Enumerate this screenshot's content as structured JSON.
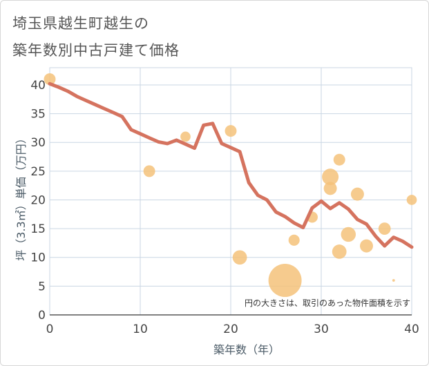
{
  "title_line1": "埼玉県越生町越生の",
  "title_line2": "築年数別中古戸建て価格",
  "chart_data": {
    "type": "scatter",
    "xlabel": "築年数（年）",
    "ylabel": "坪（3.3㎡）単価（万円）",
    "xlim": [
      0,
      40
    ],
    "ylim": [
      0,
      43
    ],
    "x_ticks": [
      0,
      10,
      20,
      30,
      40
    ],
    "y_ticks": [
      0,
      5,
      10,
      15,
      20,
      25,
      30,
      35,
      40
    ],
    "grid": true,
    "note": "円の大きさは、取引のあった物件面積を示す",
    "colors": {
      "trend": "#d5735f",
      "bubble": "#f5c27a",
      "grid": "#c9d6e3",
      "axis": "#555555"
    },
    "scatter": [
      {
        "x": 0,
        "y": 41,
        "size": 2
      },
      {
        "x": 11,
        "y": 25,
        "size": 2
      },
      {
        "x": 15,
        "y": 31,
        "size": 1.5
      },
      {
        "x": 20,
        "y": 32,
        "size": 2
      },
      {
        "x": 21,
        "y": 10,
        "size": 3
      },
      {
        "x": 26,
        "y": 6,
        "size": 16
      },
      {
        "x": 27,
        "y": 13,
        "size": 1.8
      },
      {
        "x": 29,
        "y": 17,
        "size": 1.8
      },
      {
        "x": 31,
        "y": 24,
        "size": 4
      },
      {
        "x": 31,
        "y": 22,
        "size": 2.5
      },
      {
        "x": 32,
        "y": 27,
        "size": 2
      },
      {
        "x": 32,
        "y": 11,
        "size": 3
      },
      {
        "x": 33,
        "y": 14,
        "size": 3.2
      },
      {
        "x": 34,
        "y": 21,
        "size": 2.5
      },
      {
        "x": 35,
        "y": 12,
        "size": 2.5
      },
      {
        "x": 37,
        "y": 15,
        "size": 2.2
      },
      {
        "x": 38,
        "y": 6,
        "size": 0.1
      },
      {
        "x": 40,
        "y": 20,
        "size": 1.5
      }
    ],
    "trend": {
      "x": [
        0,
        1,
        2,
        3,
        4,
        5,
        6,
        7,
        8,
        9,
        10,
        11,
        12,
        13,
        14,
        15,
        16,
        17,
        18,
        19,
        20,
        21,
        22,
        23,
        24,
        25,
        26,
        27,
        28,
        29,
        30,
        31,
        32,
        33,
        34,
        35,
        36,
        37,
        38,
        39,
        40
      ],
      "y": [
        40.2,
        39.6,
        38.9,
        38,
        37.3,
        36.6,
        35.9,
        35.2,
        34.5,
        32.2,
        31.5,
        30.8,
        30.1,
        29.8,
        30.4,
        29.7,
        29,
        33,
        33.3,
        29.8,
        29.1,
        28.4,
        23,
        20.8,
        20,
        17.9,
        17.1,
        16,
        15.2,
        18.6,
        19.8,
        18.5,
        19.5,
        18.4,
        16.6,
        15.8,
        13.7,
        12,
        13.5,
        12.8,
        11.8
      ]
    }
  }
}
